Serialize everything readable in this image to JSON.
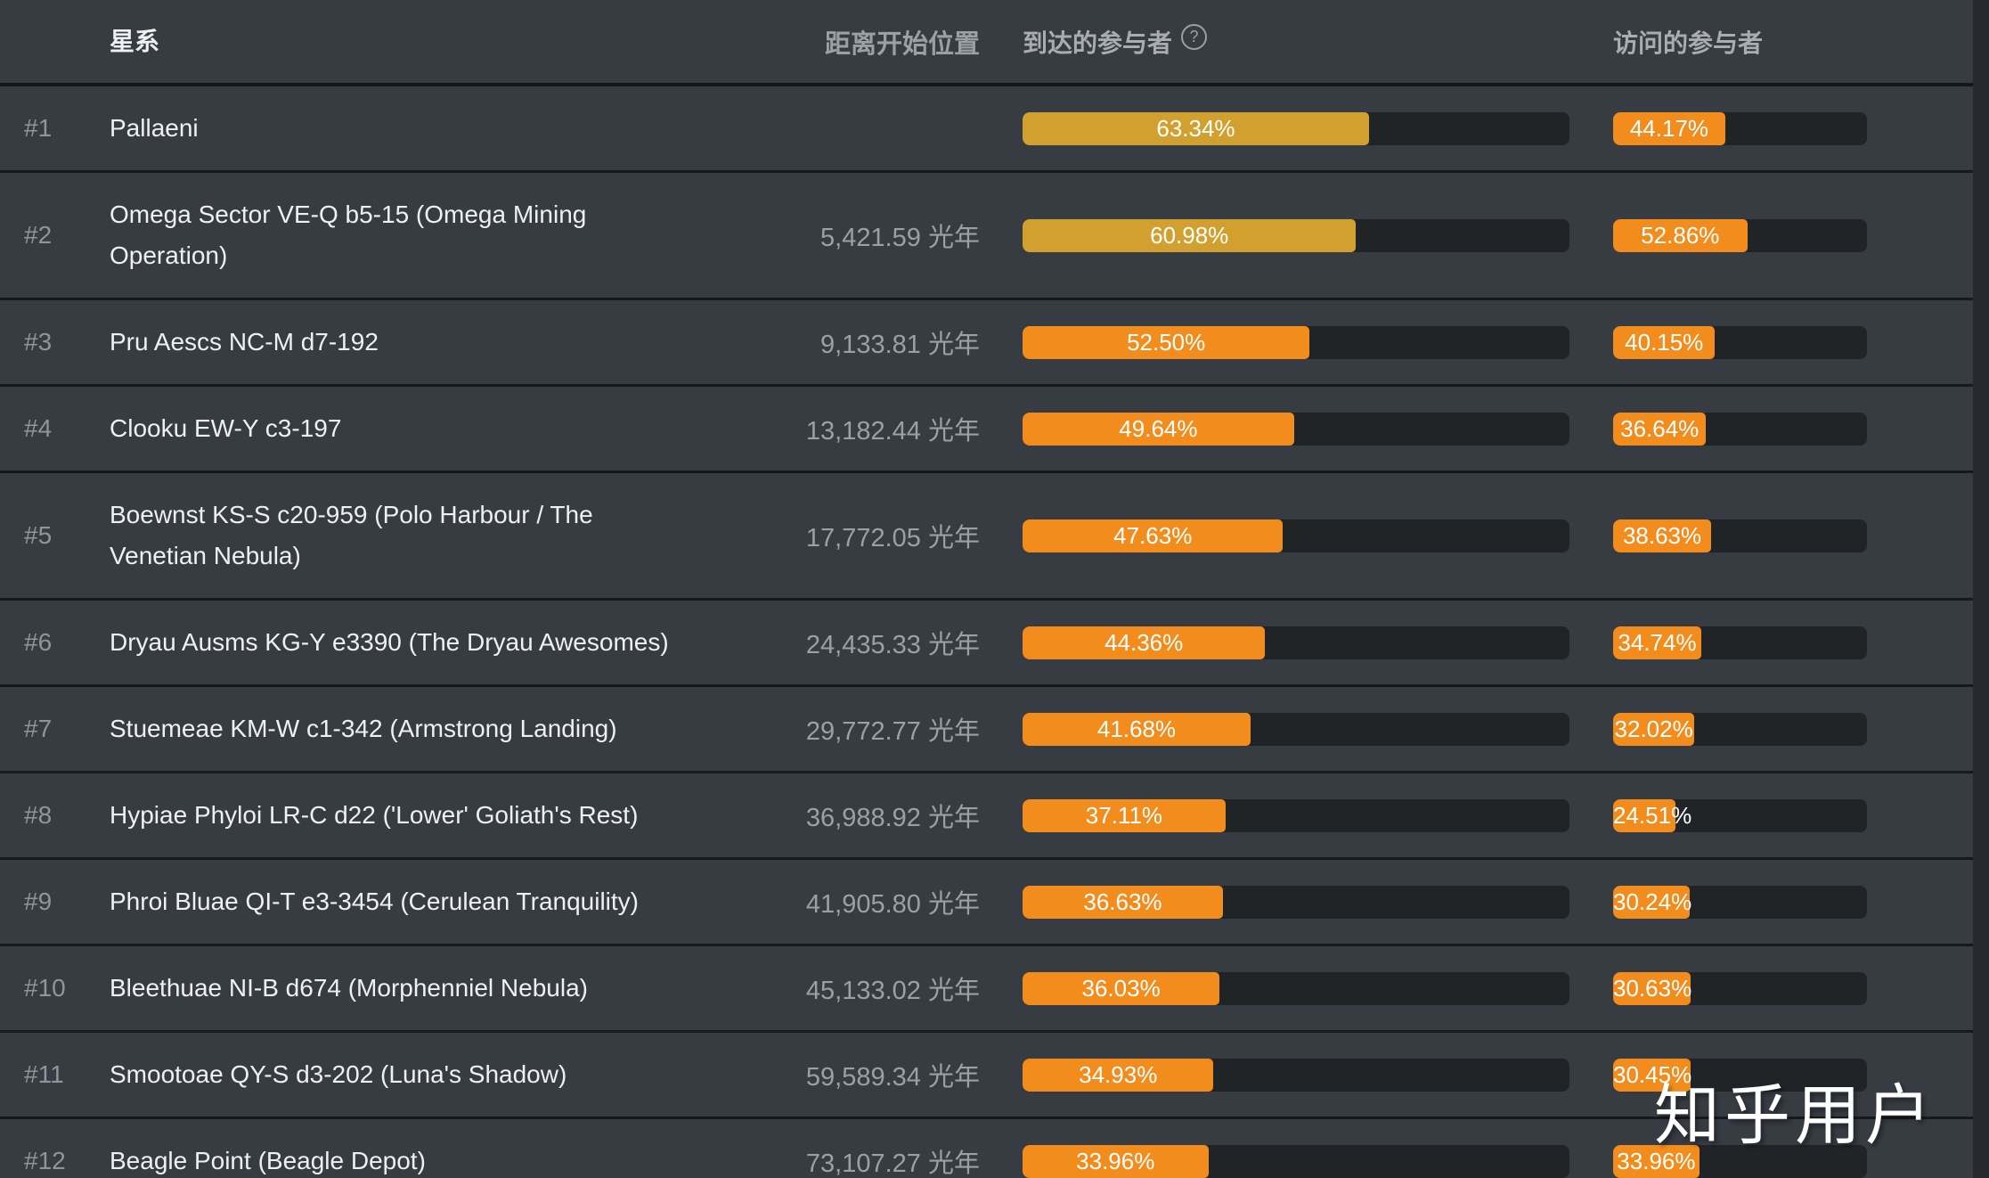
{
  "header": {
    "system": "星系",
    "distance": "距离开始位置",
    "reached": "到达的参与者",
    "reached_help_icon": "?",
    "visited": "访问的参与者"
  },
  "colors": {
    "gold": "#d2a02f",
    "orange": "#f28c1d",
    "track": "#212427",
    "row_bg": "#373b42",
    "page_bg": "#26292e"
  },
  "watermark": "知乎用户",
  "rows": [
    {
      "rank": "#1",
      "system": "Pallaeni",
      "distance": "",
      "reached": 63.34,
      "reached_label": "63.34%",
      "reached_color": "gold",
      "visited": 44.17,
      "visited_label": "44.17%"
    },
    {
      "rank": "#2",
      "system": "Omega Sector VE-Q b5-15 (Omega Mining\nOperation)",
      "distance": "5,421.59 光年",
      "reached": 60.98,
      "reached_label": "60.98%",
      "reached_color": "gold",
      "visited": 52.86,
      "visited_label": "52.86%"
    },
    {
      "rank": "#3",
      "system": "Pru Aescs NC-M d7-192",
      "distance": "9,133.81 光年",
      "reached": 52.5,
      "reached_label": "52.50%",
      "reached_color": "orange",
      "visited": 40.15,
      "visited_label": "40.15%"
    },
    {
      "rank": "#4",
      "system": "Clooku EW-Y c3-197",
      "distance": "13,182.44 光年",
      "reached": 49.64,
      "reached_label": "49.64%",
      "reached_color": "orange",
      "visited": 36.64,
      "visited_label": "36.64%"
    },
    {
      "rank": "#5",
      "system": "Boewnst KS-S c20-959 (Polo Harbour / The\nVenetian Nebula)",
      "distance": "17,772.05 光年",
      "reached": 47.63,
      "reached_label": "47.63%",
      "reached_color": "orange",
      "visited": 38.63,
      "visited_label": "38.63%"
    },
    {
      "rank": "#6",
      "system": "Dryau Ausms KG-Y e3390 (The Dryau Awesomes)",
      "distance": "24,435.33 光年",
      "reached": 44.36,
      "reached_label": "44.36%",
      "reached_color": "orange",
      "visited": 34.74,
      "visited_label": "34.74%"
    },
    {
      "rank": "#7",
      "system": "Stuemeae KM-W c1-342 (Armstrong Landing)",
      "distance": "29,772.77 光年",
      "reached": 41.68,
      "reached_label": "41.68%",
      "reached_color": "orange",
      "visited": 32.02,
      "visited_label": "32.02%"
    },
    {
      "rank": "#8",
      "system": "Hypiae Phyloi LR-C d22 ('Lower' Goliath's Rest)",
      "distance": "36,988.92 光年",
      "reached": 37.11,
      "reached_label": "37.11%",
      "reached_color": "orange",
      "visited": 24.51,
      "visited_label": "24.51%"
    },
    {
      "rank": "#9",
      "system": "Phroi Bluae QI-T e3-3454 (Cerulean Tranquility)",
      "distance": "41,905.80 光年",
      "reached": 36.63,
      "reached_label": "36.63%",
      "reached_color": "orange",
      "visited": 30.24,
      "visited_label": "30.24%"
    },
    {
      "rank": "#10",
      "system": "Bleethuae NI-B d674 (Morphenniel Nebula)",
      "distance": "45,133.02 光年",
      "reached": 36.03,
      "reached_label": "36.03%",
      "reached_color": "orange",
      "visited": 30.63,
      "visited_label": "30.63%"
    },
    {
      "rank": "#11",
      "system": "Smootoae QY-S d3-202 (Luna's Shadow)",
      "distance": "59,589.34 光年",
      "reached": 34.93,
      "reached_label": "34.93%",
      "reached_color": "orange",
      "visited": 30.45,
      "visited_label": "30.45%"
    },
    {
      "rank": "#12",
      "system": "Beagle Point (Beagle Depot)",
      "distance": "73,107.27 光年",
      "reached": 33.96,
      "reached_label": "33.96%",
      "reached_color": "orange",
      "visited": 33.96,
      "visited_label": "33.96%"
    }
  ]
}
